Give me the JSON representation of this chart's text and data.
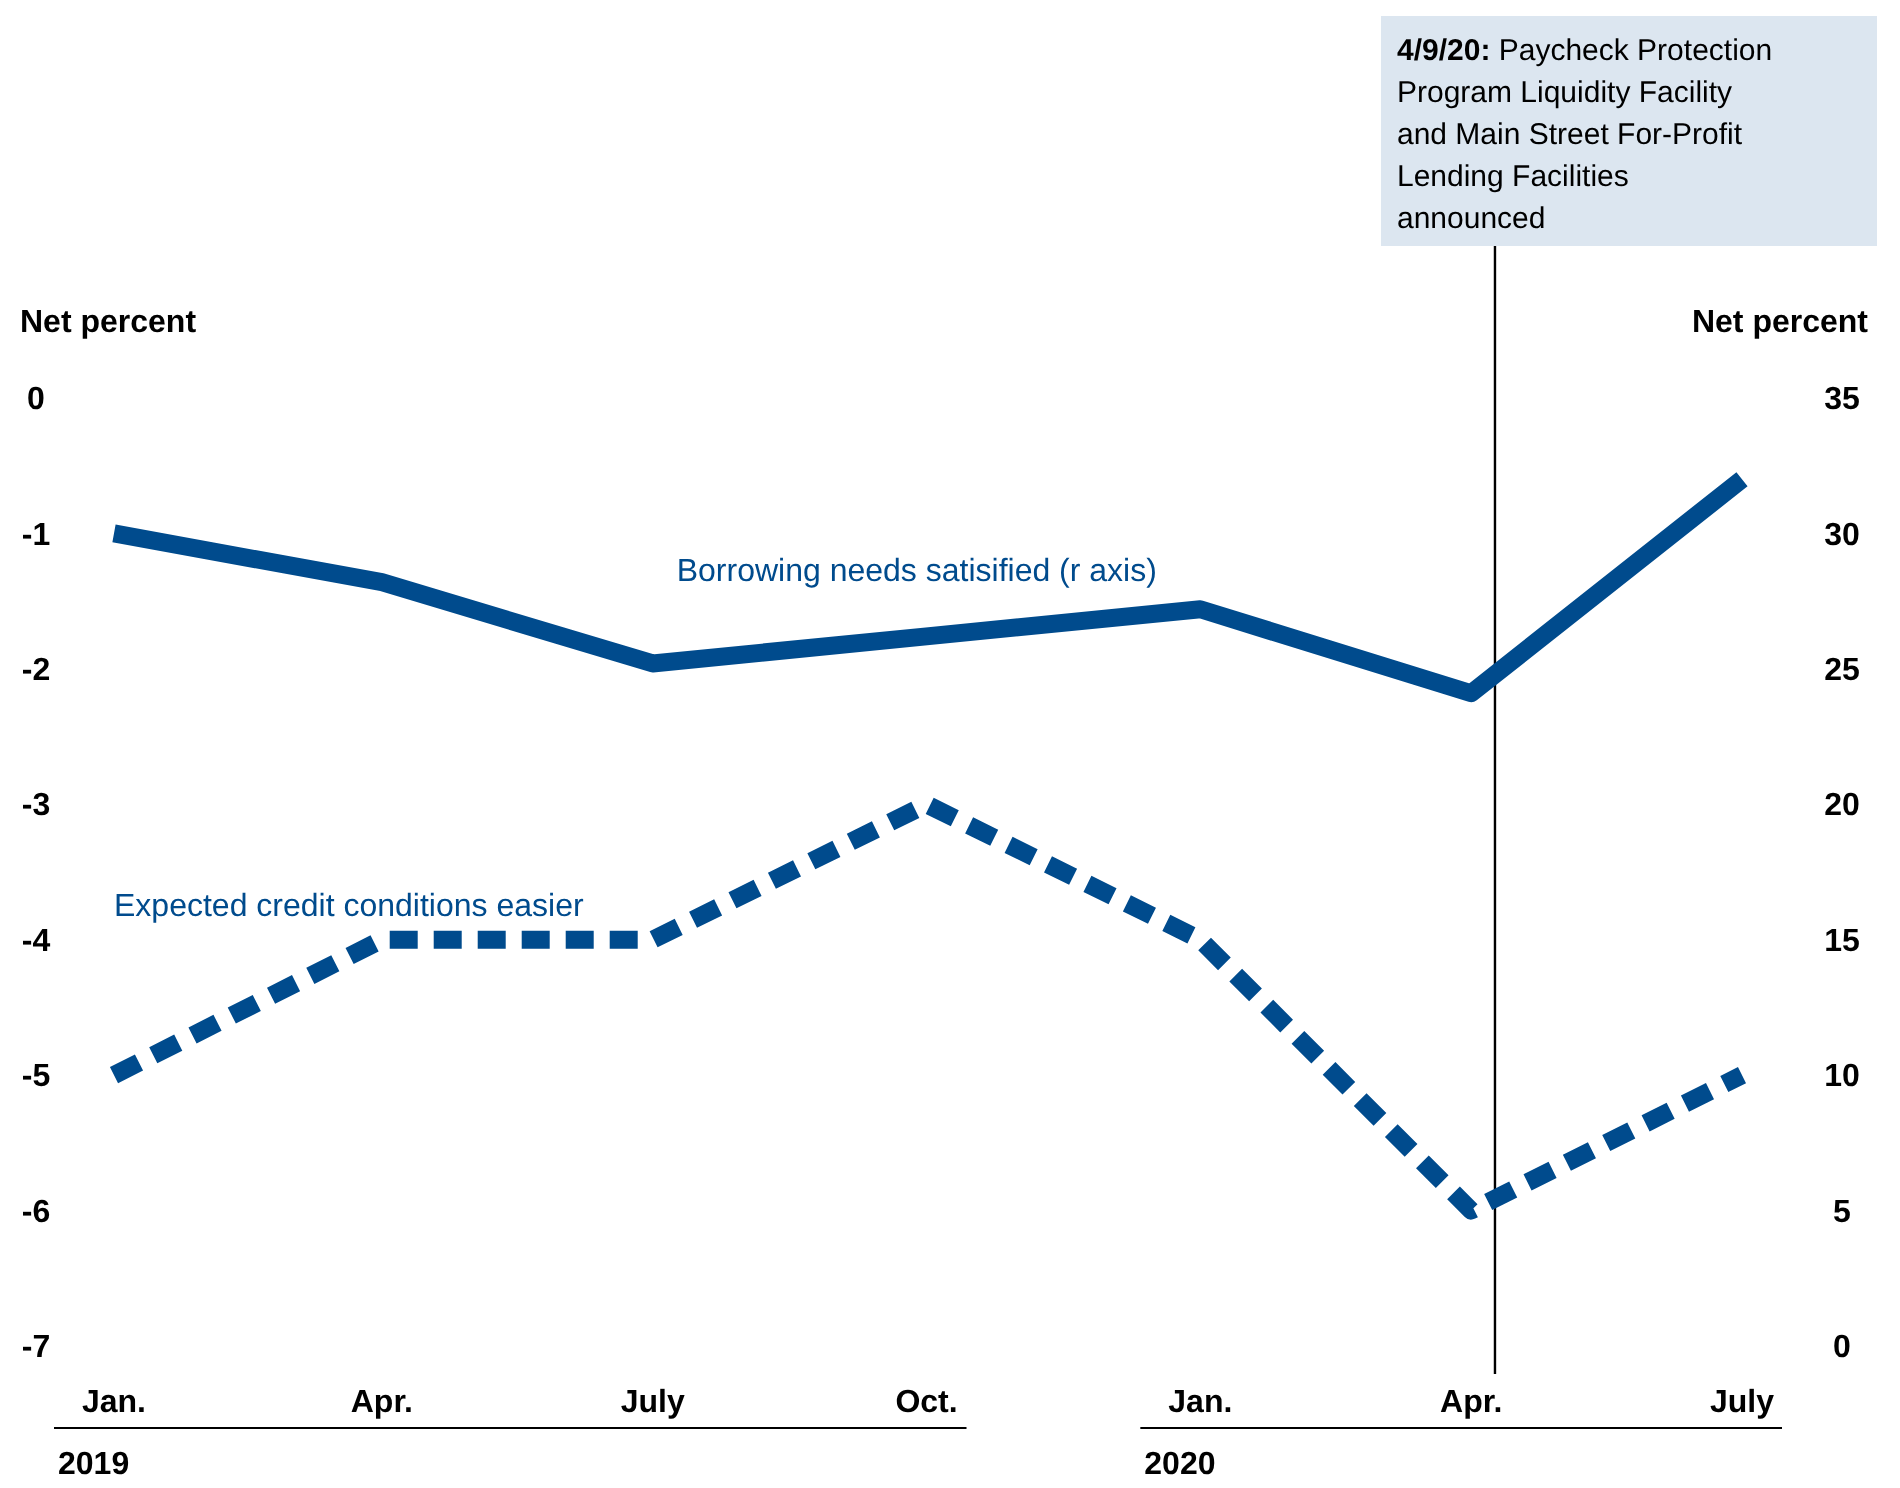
{
  "chart_data": {
    "type": "line",
    "ylabel": "Net percent",
    "y2label": "Net percent",
    "x": [
      "2019-01",
      "2019-04",
      "2019-07",
      "2019-10",
      "2020-01",
      "2020-04",
      "2020-07"
    ],
    "xlim": [
      "2019-01",
      "2020-07"
    ],
    "xticks": [
      {
        "value": "2019-01",
        "label": "Jan."
      },
      {
        "value": "2019-04",
        "label": "Apr."
      },
      {
        "value": "2019-07",
        "label": "July"
      },
      {
        "value": "2019-10",
        "label": "Oct."
      },
      {
        "value": "2020-01",
        "label": "Jan."
      },
      {
        "value": "2020-04",
        "label": "Apr."
      },
      {
        "value": "2020-07",
        "label": "July"
      }
    ],
    "ylim": [
      -7,
      0
    ],
    "yticks": [
      -7,
      -6,
      -5,
      -4,
      -3,
      -2,
      -1,
      0
    ],
    "y2lim": [
      0,
      35
    ],
    "y2ticks": [
      0,
      5,
      10,
      15,
      20,
      25,
      30,
      35
    ],
    "series": [
      {
        "name": "Borrowing needs satisified (r axis)",
        "color": "#004b8d",
        "axis": "y2",
        "line_style": "solid",
        "values": [
          30,
          28.2,
          25.2,
          26.2,
          27.2,
          24.1,
          32
        ]
      },
      {
        "name": "Expected credit conditions easier",
        "color": "#004b8d",
        "axis": "y",
        "line_style": "dashed",
        "values": [
          -5,
          -4,
          -4,
          -3,
          -4,
          -6,
          -5
        ]
      }
    ],
    "ref_lines": [
      {
        "axis": "x",
        "value": "2020-04-09",
        "label": "4/9/20: Paycheck Protection Program Liquidity Facility and Main Street For-Profit Lending Facilities announced",
        "color": "#000000"
      }
    ],
    "annotations": [
      "2019",
      "2020"
    ],
    "grid": false,
    "legend": false,
    "marker": "none"
  }
}
